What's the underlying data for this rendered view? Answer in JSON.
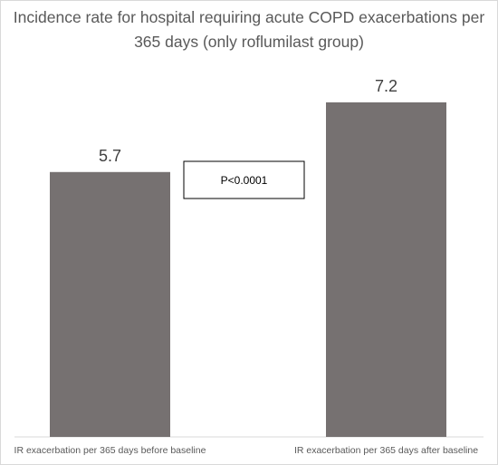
{
  "chart_data": {
    "type": "bar",
    "title_lines": [
      "Incidence rate for hospital requiring acute COPD exacerbations per",
      "365 days (only roflumilast group)"
    ],
    "categories": [
      "IR exacerbation per 365 days before baseline",
      "IR exacerbation per 365 days after baseline"
    ],
    "values": [
      5.7,
      7.2
    ],
    "data_labels": [
      "5.7",
      "7.2"
    ],
    "annotation": "P<0.0001",
    "ylim": [
      0,
      7.9
    ],
    "grid": false,
    "legend": "none",
    "bar_color": "#767171"
  }
}
